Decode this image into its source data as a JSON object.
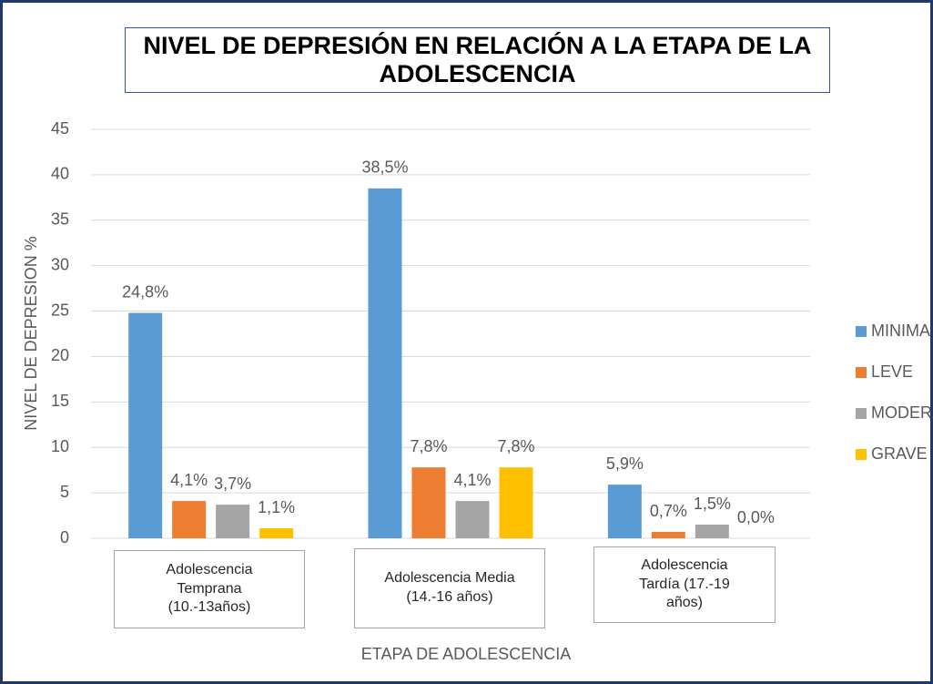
{
  "chart_data": {
    "type": "bar",
    "title": "NIVEL DE DEPRESIÓN EN RELACIÓN A LA ETAPA DE LA ADOLESCENCIA",
    "x_label": "ETAPA DE ADOLESCENCIA",
    "y_label": "NIVEL DE DEPRESION %",
    "categories": [
      "Adolescencia Temprana (10.-13años)",
      "Adolescencia Media (14.-16 años)",
      "Adolescencia Tardía (17.-19 años)"
    ],
    "series": [
      {
        "name": "MINIMA",
        "color": "#5b9bd5",
        "values": [
          24.8,
          38.5,
          5.9
        ],
        "value_labels": [
          "24,8%",
          "38,5%",
          "5,9%"
        ]
      },
      {
        "name": "LEVE",
        "color": "#ed7d31",
        "values": [
          4.1,
          7.8,
          0.7
        ],
        "value_labels": [
          "4,1%",
          "7,8%",
          "0,7%"
        ]
      },
      {
        "name": "MODERADA",
        "color": "#a5a5a5",
        "values": [
          3.7,
          4.1,
          1.5
        ],
        "value_labels": [
          "3,7%",
          "4,1%",
          "1,5%"
        ]
      },
      {
        "name": "GRAVE",
        "color": "#ffc000",
        "values": [
          1.1,
          7.8,
          0.0
        ],
        "value_labels": [
          "1,1%",
          "7,8%",
          "0,0%"
        ]
      }
    ],
    "ylim": [
      0,
      45
    ],
    "yticks": [
      0,
      5,
      10,
      15,
      20,
      25,
      30,
      35,
      40,
      45
    ],
    "grid": true,
    "legend": "right"
  }
}
